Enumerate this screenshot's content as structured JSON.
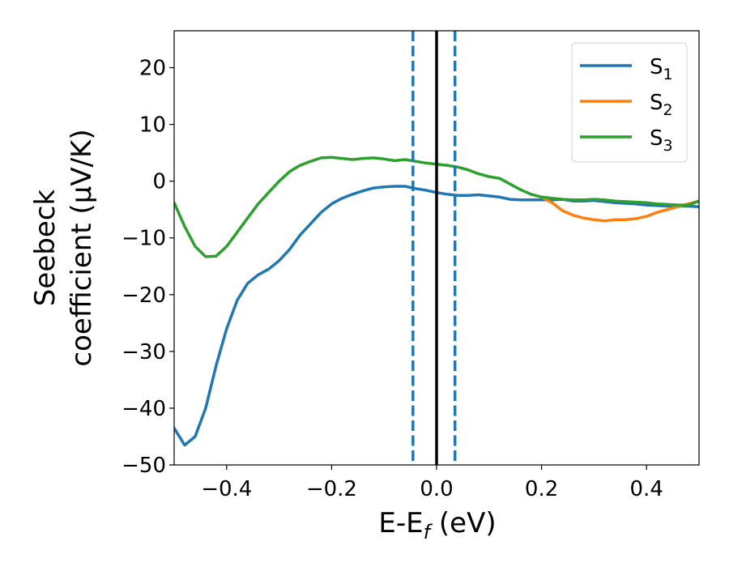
{
  "chart_data": {
    "type": "line",
    "title": "",
    "xlabel": {
      "main": "E-E",
      "sub": "f",
      "suffix": " (eV)"
    },
    "ylabel": [
      "Seebeck",
      "coefficient  (μV/K)"
    ],
    "xlim": [
      -0.5,
      0.5
    ],
    "ylim": [
      -50,
      26.5
    ],
    "xticks": [
      -0.4,
      -0.2,
      0.0,
      0.2,
      0.4
    ],
    "xtick_labels": [
      "−0.4",
      "−0.2",
      "0.0",
      "0.2",
      "0.4"
    ],
    "yticks": [
      20,
      10,
      0,
      -10,
      -20,
      -30,
      -40,
      -50
    ],
    "ytick_labels": [
      "20",
      "10",
      "0",
      "−10",
      "−20",
      "−30",
      "−40",
      "−50"
    ],
    "grid": false,
    "legend_position": "top-right",
    "vlines": [
      {
        "x": 0.0,
        "style": "solid",
        "color": "#000000"
      },
      {
        "x": -0.045,
        "style": "dashed",
        "color": "#1f77b4"
      },
      {
        "x": 0.035,
        "style": "dashed",
        "color": "#1f77b4"
      }
    ],
    "series": [
      {
        "name": "S",
        "sub": "1",
        "color": "#1f77b4",
        "x": [
          -0.5,
          -0.48,
          -0.46,
          -0.44,
          -0.42,
          -0.4,
          -0.38,
          -0.36,
          -0.34,
          -0.32,
          -0.3,
          -0.28,
          -0.26,
          -0.24,
          -0.22,
          -0.2,
          -0.18,
          -0.16,
          -0.14,
          -0.12,
          -0.1,
          -0.08,
          -0.06,
          -0.04,
          -0.02,
          0.0,
          0.02,
          0.04,
          0.06,
          0.08,
          0.1,
          0.12,
          0.14,
          0.16,
          0.18,
          0.2,
          0.22,
          0.24,
          0.26,
          0.28,
          0.3,
          0.32,
          0.34,
          0.36,
          0.38,
          0.4,
          0.42,
          0.44,
          0.46,
          0.48,
          0.5
        ],
        "y": [
          -43.5,
          -46.5,
          -45,
          -40,
          -32.5,
          -26,
          -21,
          -18,
          -16.5,
          -15.5,
          -14,
          -12,
          -9.5,
          -7.5,
          -5.5,
          -4,
          -3,
          -2.3,
          -1.7,
          -1.2,
          -1,
          -0.9,
          -0.9,
          -1.3,
          -1.6,
          -2,
          -2.3,
          -2.5,
          -2.5,
          -2.4,
          -2.6,
          -2.8,
          -3.2,
          -3.3,
          -3.3,
          -3.3,
          -3.3,
          -3.2,
          -3.5,
          -3.5,
          -3.4,
          -3.6,
          -3.8,
          -3.9,
          -4.0,
          -4.2,
          -4.3,
          -4.4,
          -4.4,
          -4.4,
          -4.5
        ]
      },
      {
        "name": "S",
        "sub": "2",
        "color": "#ff7f0e",
        "x": [
          0.2,
          0.22,
          0.24,
          0.26,
          0.28,
          0.3,
          0.32,
          0.34,
          0.36,
          0.38,
          0.4,
          0.42,
          0.44,
          0.46,
          0.48,
          0.5
        ],
        "y": [
          -2.8,
          -3.8,
          -5.2,
          -6,
          -6.5,
          -6.8,
          -7,
          -6.8,
          -6.8,
          -6.6,
          -6.2,
          -5.5,
          -5,
          -4.5,
          -4,
          -3.5
        ]
      },
      {
        "name": "S",
        "sub": "3",
        "color": "#2ca02c",
        "x": [
          -0.5,
          -0.48,
          -0.46,
          -0.44,
          -0.42,
          -0.4,
          -0.38,
          -0.36,
          -0.34,
          -0.32,
          -0.3,
          -0.28,
          -0.26,
          -0.24,
          -0.22,
          -0.2,
          -0.18,
          -0.16,
          -0.14,
          -0.12,
          -0.1,
          -0.08,
          -0.06,
          -0.04,
          -0.02,
          0.0,
          0.02,
          0.04,
          0.06,
          0.08,
          0.1,
          0.12,
          0.14,
          0.16,
          0.18,
          0.2,
          0.22,
          0.24,
          0.26,
          0.28,
          0.3,
          0.32,
          0.34,
          0.36,
          0.38,
          0.4,
          0.42,
          0.44,
          0.46,
          0.48,
          0.5
        ],
        "y": [
          -3.8,
          -8,
          -11.5,
          -13.3,
          -13.2,
          -11.5,
          -9,
          -6.5,
          -4,
          -2,
          0,
          1.7,
          2.8,
          3.5,
          4.1,
          4.2,
          4.0,
          3.8,
          4.0,
          4.1,
          3.9,
          3.6,
          3.8,
          3.5,
          3.2,
          3.0,
          2.8,
          2.5,
          2.0,
          1.3,
          0.8,
          0.5,
          -0.5,
          -1.5,
          -2.3,
          -2.8,
          -3.0,
          -3.2,
          -3.3,
          -3.3,
          -3.2,
          -3.3,
          -3.5,
          -3.6,
          -3.7,
          -3.8,
          -4.0,
          -4.1,
          -4.2,
          -4.2,
          -3.5
        ]
      }
    ]
  }
}
